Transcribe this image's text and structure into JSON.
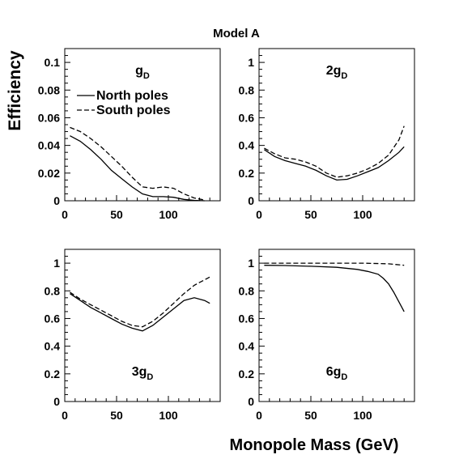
{
  "figure": {
    "title": "Model A",
    "ylabel": "Efficiency",
    "xlabel": "Monopole Mass (GeV)"
  },
  "legend": [
    {
      "label": "North poles",
      "style": "solid"
    },
    {
      "label": "South poles",
      "style": "dashed"
    }
  ],
  "chart_data": [
    {
      "type": "line",
      "panel_label": {
        "main": "g",
        "sub": "D",
        "label_position": "top"
      },
      "xlim": [
        0,
        150
      ],
      "ylim": [
        0,
        0.11
      ],
      "xticks": [
        0,
        50,
        100
      ],
      "yticks": [
        0,
        0.02,
        0.04,
        0.06,
        0.08,
        0.1
      ],
      "ytick_labels": [
        "0",
        "0.02",
        "0.04",
        "0.06",
        "0.08",
        "0.1"
      ],
      "series": [
        {
          "name": "North poles",
          "style": "solid",
          "x": [
            5,
            15,
            25,
            35,
            45,
            55,
            65,
            75,
            85,
            95,
            105,
            115,
            125,
            135
          ],
          "y": [
            0.047,
            0.043,
            0.037,
            0.03,
            0.022,
            0.016,
            0.01,
            0.005,
            0.003,
            0.003,
            0.0025,
            0.001,
            0.0003,
            0.0
          ]
        },
        {
          "name": "South poles",
          "style": "dashed",
          "x": [
            5,
            15,
            25,
            35,
            45,
            55,
            65,
            75,
            85,
            95,
            105,
            115,
            125,
            135
          ],
          "y": [
            0.053,
            0.05,
            0.045,
            0.039,
            0.032,
            0.025,
            0.017,
            0.01,
            0.009,
            0.01,
            0.009,
            0.005,
            0.002,
            0.0005
          ]
        }
      ]
    },
    {
      "type": "line",
      "panel_label": {
        "main": "2g",
        "sub": "D",
        "label_position": "top"
      },
      "xlim": [
        0,
        150
      ],
      "ylim": [
        0,
        1.1
      ],
      "xticks": [
        0,
        50,
        100
      ],
      "yticks": [
        0,
        0.2,
        0.4,
        0.6,
        0.8,
        1.0
      ],
      "ytick_labels": [
        "0",
        "0.2",
        "0.4",
        "0.6",
        "0.8",
        "1"
      ],
      "series": [
        {
          "name": "North poles",
          "style": "solid",
          "x": [
            5,
            15,
            25,
            35,
            45,
            55,
            65,
            75,
            85,
            95,
            105,
            115,
            125,
            135,
            140
          ],
          "y": [
            0.37,
            0.32,
            0.29,
            0.27,
            0.25,
            0.22,
            0.18,
            0.15,
            0.155,
            0.18,
            0.21,
            0.24,
            0.29,
            0.35,
            0.39
          ]
        },
        {
          "name": "South poles",
          "style": "dashed",
          "x": [
            5,
            15,
            25,
            35,
            45,
            55,
            65,
            75,
            85,
            95,
            105,
            115,
            125,
            135,
            140
          ],
          "y": [
            0.38,
            0.34,
            0.31,
            0.3,
            0.28,
            0.25,
            0.2,
            0.17,
            0.18,
            0.2,
            0.23,
            0.27,
            0.33,
            0.44,
            0.54
          ]
        }
      ]
    },
    {
      "type": "line",
      "panel_label": {
        "main": "3g",
        "sub": "D",
        "label_position": "bottom"
      },
      "xlim": [
        0,
        150
      ],
      "ylim": [
        0,
        1.1
      ],
      "xticks": [
        0,
        50,
        100
      ],
      "yticks": [
        0,
        0.2,
        0.4,
        0.6,
        0.8,
        1.0
      ],
      "ytick_labels": [
        "0",
        "0.2",
        "0.4",
        "0.6",
        "0.8",
        "1"
      ],
      "series": [
        {
          "name": "North poles",
          "style": "solid",
          "x": [
            5,
            15,
            25,
            35,
            45,
            55,
            65,
            75,
            85,
            95,
            105,
            115,
            125,
            135,
            140
          ],
          "y": [
            0.78,
            0.73,
            0.68,
            0.64,
            0.6,
            0.56,
            0.53,
            0.51,
            0.55,
            0.61,
            0.67,
            0.73,
            0.75,
            0.73,
            0.71
          ]
        },
        {
          "name": "South poles",
          "style": "dashed",
          "x": [
            5,
            15,
            25,
            35,
            45,
            55,
            65,
            75,
            85,
            95,
            105,
            115,
            125,
            135,
            140
          ],
          "y": [
            0.79,
            0.74,
            0.7,
            0.66,
            0.62,
            0.58,
            0.55,
            0.54,
            0.58,
            0.64,
            0.71,
            0.78,
            0.84,
            0.88,
            0.9
          ]
        }
      ]
    },
    {
      "type": "line",
      "panel_label": {
        "main": "6g",
        "sub": "D",
        "label_position": "bottom"
      },
      "xlim": [
        0,
        150
      ],
      "ylim": [
        0,
        1.1
      ],
      "xticks": [
        0,
        50,
        100
      ],
      "yticks": [
        0,
        0.2,
        0.4,
        0.6,
        0.8,
        1.0
      ],
      "ytick_labels": [
        "0",
        "0.2",
        "0.4",
        "0.6",
        "0.8",
        "1"
      ],
      "series": [
        {
          "name": "North poles",
          "style": "solid",
          "x": [
            5,
            25,
            50,
            75,
            95,
            105,
            115,
            120,
            125,
            130,
            135,
            140
          ],
          "y": [
            0.985,
            0.983,
            0.978,
            0.97,
            0.955,
            0.94,
            0.92,
            0.89,
            0.85,
            0.79,
            0.72,
            0.65
          ]
        },
        {
          "name": "South poles",
          "style": "dashed",
          "x": [
            5,
            50,
            100,
            125,
            140
          ],
          "y": [
            1.0,
            1.0,
            1.0,
            0.995,
            0.985
          ]
        }
      ]
    }
  ]
}
